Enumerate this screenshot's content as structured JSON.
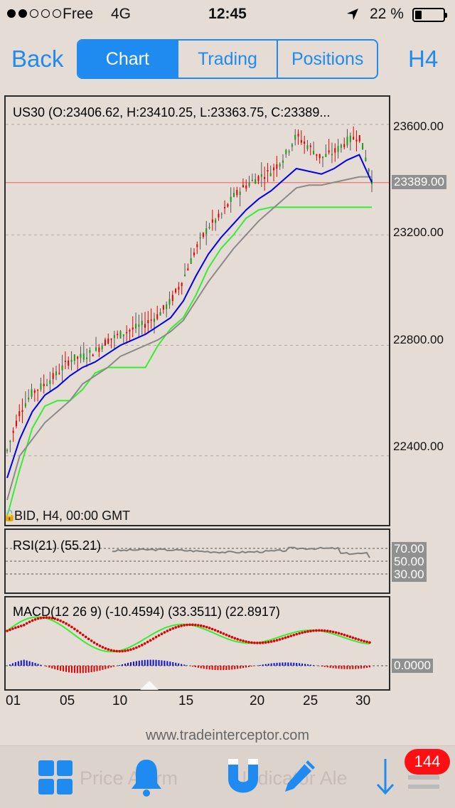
{
  "status_bar": {
    "carrier": "Free",
    "network": "4G",
    "time": "12:45",
    "battery_pct": "22 %",
    "battery_level": 0.22,
    "signal_dots_filled": 2,
    "signal_dots_total": 5
  },
  "nav": {
    "back_label": "Back",
    "tabs": [
      "Chart",
      "Trading",
      "Positions"
    ],
    "active_tab": 0,
    "timeframe": "H4"
  },
  "main_chart": {
    "ohlc_label": "US30 (O:23406.62, H:23410.25, L:23363.75, C:23389...",
    "bid_label": "BID, H4, 00:00 GMT",
    "price_levels": [
      "23600.00",
      "23200.00",
      "22800.00",
      "22400.00"
    ],
    "current_price": "23389.00"
  },
  "rsi": {
    "label": "RSI(21) (55.21)",
    "levels": [
      "70.00",
      "50.00",
      "30.00"
    ]
  },
  "macd": {
    "label": "MACD(12 26 9) (-10.4594) (33.3511) (22.8917)",
    "zero_label": "0.0000"
  },
  "x_axis": [
    "01",
    "05",
    "10",
    "15",
    "20",
    "25",
    "30"
  ],
  "website": "www.tradeinterceptor.com",
  "toolbar": {
    "ghost_left": "Price Alarm",
    "ghost_right": "Indicator Ale",
    "badge_count": "144"
  },
  "colors": {
    "accent": "#1f8bf0",
    "up_bar": "#1c9a1c",
    "down_bar": "#e00000",
    "ema_fast": "#0000ee",
    "ema_slow": "#8a8a8a",
    "lower_band": "#33ee33",
    "macd_signal": "#e00000",
    "hist_pos": "#1010d0",
    "hist_neg": "#e00000",
    "badge": "#ff0f14"
  },
  "chart_data": {
    "type": "line",
    "title": "US30 (O:23406.62, H:23410.25, L:23363.75, C:23389...",
    "xlabel": "",
    "ylabel": "",
    "ylim": [
      22150,
      23700
    ],
    "x_ticks": [
      "01",
      "05",
      "10",
      "15",
      "20",
      "25",
      "30"
    ],
    "price_ticks": [
      22400,
      22800,
      23200,
      23600
    ],
    "last_price": 23389,
    "x": [
      1,
      2,
      3,
      4,
      5,
      6,
      7,
      8,
      9,
      10,
      11,
      12,
      13,
      14,
      15,
      16,
      17,
      18,
      19,
      20,
      21,
      22,
      23,
      24,
      25,
      26,
      27,
      28,
      29,
      30
    ],
    "series": [
      {
        "name": "",
        "values": [
          22420,
          22560,
          22630,
          22660,
          22700,
          22750,
          22760,
          22780,
          22820,
          22840,
          22860,
          22880,
          22910,
          22960,
          23040,
          23150,
          23230,
          23270,
          23340,
          23380,
          23410,
          23430,
          23480,
          23560,
          23520,
          23480,
          23500,
          23540,
          23560,
          23400
        ]
      },
      {
        "name": "",
        "values": [
          22320,
          22460,
          22560,
          22620,
          22650,
          22690,
          22720,
          22740,
          22770,
          22800,
          22820,
          22840,
          22870,
          22900,
          22960,
          23050,
          23130,
          23190,
          23240,
          23290,
          23330,
          23360,
          23400,
          23440,
          23430,
          23420,
          23440,
          23470,
          23490,
          23390
        ]
      },
      {
        "name": "",
        "values": [
          22240,
          22400,
          22460,
          22520,
          22560,
          22600,
          22660,
          22690,
          22720,
          22760,
          22780,
          22800,
          22820,
          22850,
          22890,
          22960,
          23030,
          23090,
          23150,
          23200,
          23250,
          23290,
          23330,
          23370,
          23380,
          23380,
          23390,
          23400,
          23410,
          23410
        ]
      },
      {
        "name": "",
        "values": [
          22180,
          22350,
          22500,
          22580,
          22600,
          22600,
          22640,
          22700,
          22720,
          22720,
          22720,
          22720,
          22800,
          22860,
          22900,
          22980,
          23080,
          23150,
          23200,
          23260,
          23290,
          23300,
          23300,
          23300,
          23300,
          23300,
          23300,
          23300,
          23300,
          23300
        ]
      }
    ],
    "rsi": {
      "levels": [
        70,
        50,
        30
      ],
      "last": 55.21
    },
    "macd": {
      "fast": 12,
      "slow": 26,
      "signal": 9,
      "values": [
        -10.4594,
        33.3511,
        22.8917
      ]
    },
    "grid": true
  }
}
